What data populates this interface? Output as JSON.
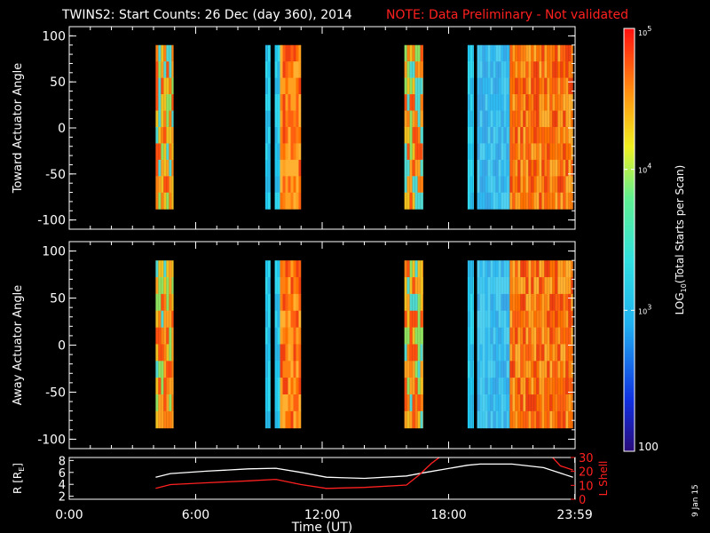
{
  "header": {
    "title": "TWINS2: Start Counts: 26 Dec (day 360), 2014",
    "note": "NOTE: Data Preliminary - Not validated"
  },
  "side_date": "9 Jan 15",
  "colors": {
    "background": "#000000",
    "axes": "#ffffff",
    "note": "#ff2020",
    "lshell": "#ff2020",
    "radius": "#ffffff"
  },
  "chart_data": [
    {
      "type": "heatmap",
      "name": "toward-panel",
      "ylabel": "Toward Actuator Angle",
      "ylim": [
        -110,
        110
      ],
      "yticks": [
        "100",
        "50",
        "0",
        "-50",
        "-100"
      ],
      "xlim": [
        0,
        24
      ],
      "data_range_y": [
        -88,
        90
      ],
      "segments": [
        {
          "t0": 4.1,
          "t1": 4.95,
          "profile": "mixed"
        },
        {
          "t0": 9.3,
          "t1": 9.55,
          "profile": "cyan"
        },
        {
          "t0": 9.6,
          "t1": 9.75,
          "profile": "black"
        },
        {
          "t0": 9.75,
          "t1": 10.0,
          "profile": "cyan"
        },
        {
          "t0": 10.0,
          "t1": 11.0,
          "profile": "orange"
        },
        {
          "t0": 15.9,
          "t1": 16.8,
          "profile": "mixed"
        },
        {
          "t0": 18.9,
          "t1": 19.2,
          "profile": "cyan"
        },
        {
          "t0": 19.2,
          "t1": 19.35,
          "profile": "black"
        },
        {
          "t0": 19.35,
          "t1": 20.9,
          "profile": "blue"
        },
        {
          "t0": 20.9,
          "t1": 23.9,
          "profile": "orange"
        }
      ]
    },
    {
      "type": "heatmap",
      "name": "away-panel",
      "ylabel": "Away Actuator Angle",
      "ylim": [
        -110,
        110
      ],
      "yticks": [
        "100",
        "50",
        "0",
        "-50",
        "-100"
      ],
      "xlim": [
        0,
        24
      ],
      "data_range_y": [
        -88,
        90
      ],
      "segments": [
        {
          "t0": 4.1,
          "t1": 4.95,
          "profile": "mixed"
        },
        {
          "t0": 9.3,
          "t1": 9.55,
          "profile": "cyan"
        },
        {
          "t0": 9.6,
          "t1": 9.75,
          "profile": "black"
        },
        {
          "t0": 9.75,
          "t1": 10.0,
          "profile": "cyan"
        },
        {
          "t0": 10.0,
          "t1": 11.0,
          "profile": "orange"
        },
        {
          "t0": 15.9,
          "t1": 16.8,
          "profile": "mixed"
        },
        {
          "t0": 18.9,
          "t1": 19.2,
          "profile": "cyan"
        },
        {
          "t0": 19.2,
          "t1": 19.35,
          "profile": "black"
        },
        {
          "t0": 19.35,
          "t1": 20.9,
          "profile": "blue"
        },
        {
          "t0": 20.9,
          "t1": 23.9,
          "profile": "orange"
        }
      ]
    },
    {
      "type": "line",
      "name": "orbit-panel",
      "ylabel": "R [R",
      "ylabel_sub": "E",
      "ylabel_end": "]",
      "ylabel_right": "L Shell",
      "ylim": [
        1.5,
        8.5
      ],
      "yticks": [
        "8",
        "6",
        "4",
        "2"
      ],
      "ylim_right": [
        0,
        30
      ],
      "yticks_right": [
        "30",
        "20",
        "10",
        "0"
      ],
      "xlim": [
        0,
        24
      ],
      "xticks": [
        "0:00",
        "6:00",
        "12:00",
        "18:00",
        "23:59"
      ],
      "xlabel": "Time (UT)",
      "series": [
        {
          "axis": "left",
          "x": [
            4.1,
            4.8,
            6.5,
            8.5,
            9.8,
            11.0,
            12.2,
            14.0,
            16.0,
            16.9,
            18.9,
            19.5,
            21.0,
            22.5,
            23.9
          ],
          "values": [
            5.2,
            5.8,
            6.2,
            6.6,
            6.7,
            6.0,
            5.2,
            5.0,
            5.4,
            6.0,
            7.2,
            7.4,
            7.4,
            6.8,
            5.2
          ]
        },
        {
          "axis": "right",
          "x": [
            4.1,
            4.8,
            6.5,
            8.5,
            9.8,
            11.0,
            12.2,
            14.0,
            16.0,
            16.6,
            17.2,
            17.6
          ],
          "values": [
            7.8,
            10.5,
            11.8,
            13.2,
            14.3,
            10.5,
            7.8,
            8.5,
            10.2,
            17.5,
            26.0,
            30.5
          ]
        },
        {
          "axis": "right",
          "x": [
            22.9,
            23.3,
            23.9
          ],
          "values": [
            30.5,
            24.0,
            21.0
          ]
        }
      ]
    }
  ],
  "colorbar": {
    "label_pre": "LOG",
    "label_sub": "10",
    "label_post": "(Total Starts per Scan)",
    "range": [
      100,
      100000
    ],
    "ticks": [
      {
        "base": "10",
        "exp": "5",
        "value": 100000
      },
      {
        "base": "10",
        "exp": "4",
        "value": 10000
      },
      {
        "base": "10",
        "exp": "3",
        "value": 1000
      },
      {
        "text": "100",
        "value": 100
      }
    ]
  }
}
